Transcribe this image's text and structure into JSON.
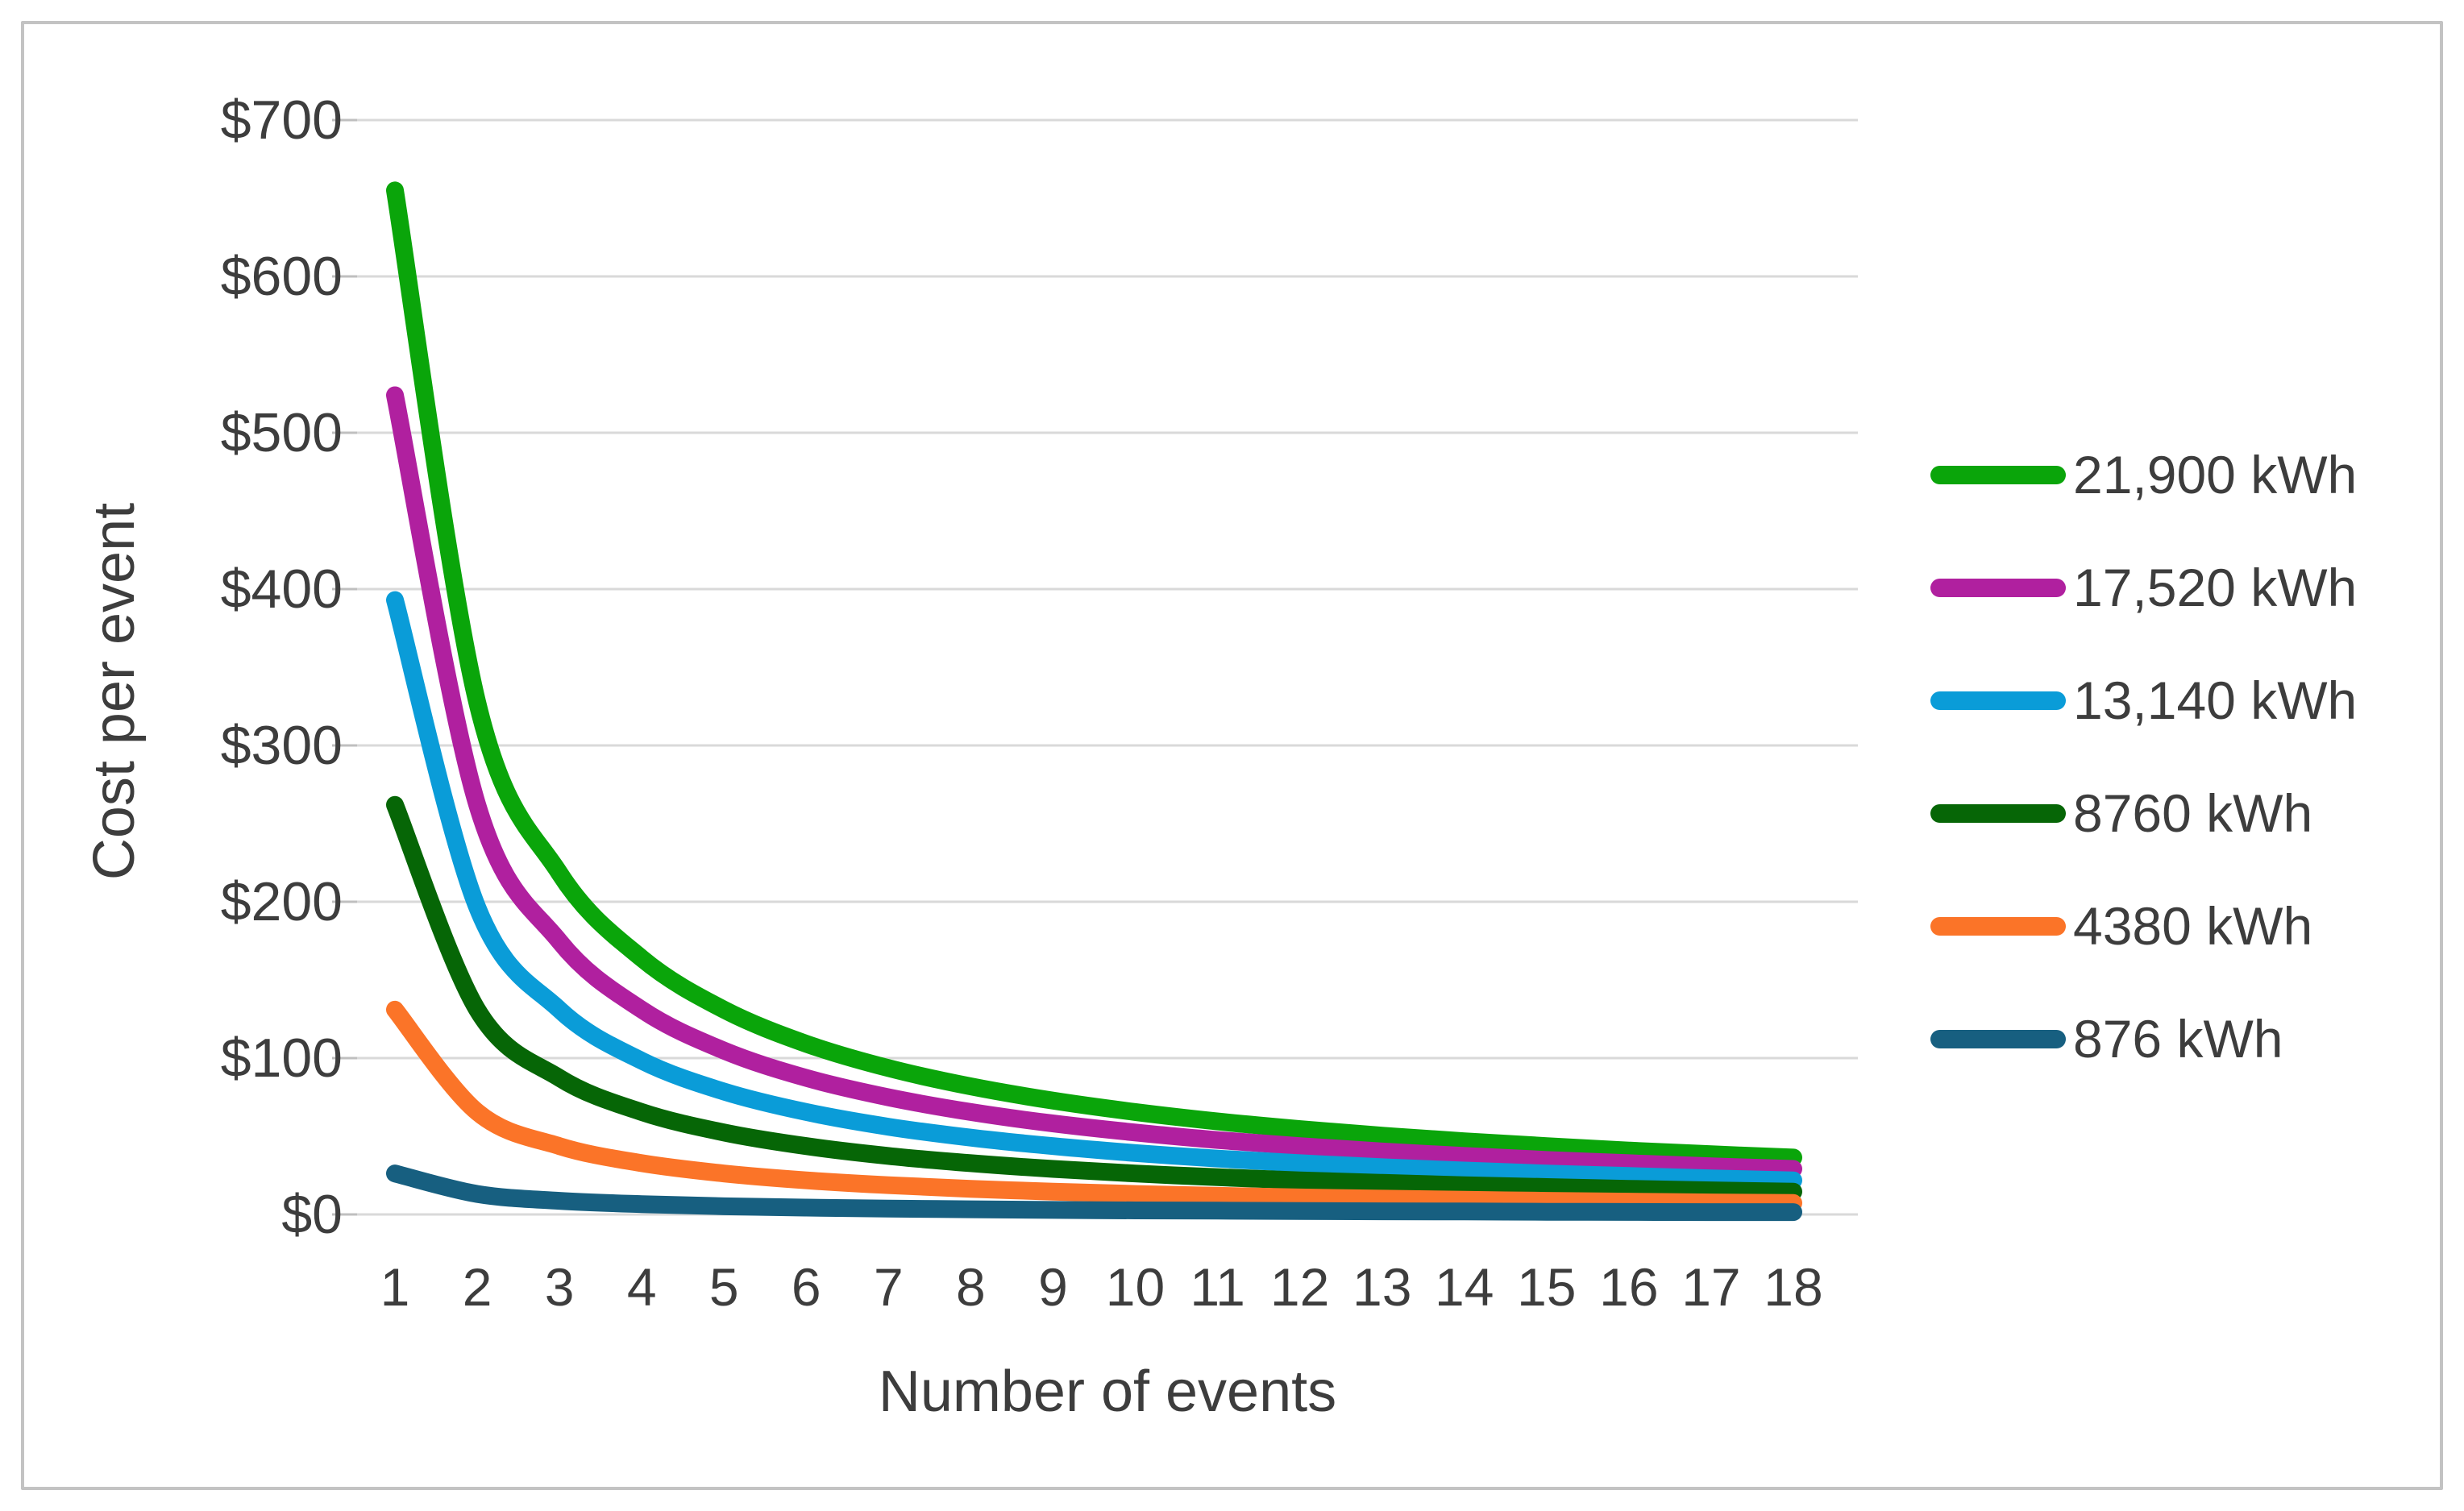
{
  "figure": {
    "background": "#FFFFFF",
    "border_color": "#C3C3C3",
    "text_color": "#3D3D3D"
  },
  "chart_data": {
    "type": "line",
    "title": "",
    "xlabel": "Number of events",
    "ylabel": "Cost per event",
    "x": [
      1,
      2,
      3,
      4,
      5,
      6,
      7,
      8,
      9,
      10,
      11,
      12,
      13,
      14,
      15,
      16,
      17,
      18
    ],
    "x_tick_labels": [
      "1",
      "2",
      "3",
      "4",
      "5",
      "6",
      "7",
      "8",
      "9",
      "10",
      "11",
      "12",
      "13",
      "14",
      "15",
      "16",
      "17",
      "18"
    ],
    "y_ticks": [
      0,
      100,
      200,
      300,
      400,
      500,
      600,
      700
    ],
    "y_tick_labels": [
      "$0",
      "$100",
      "$200",
      "$300",
      "$400",
      "$500",
      "$600",
      "$700"
    ],
    "ylim": [
      0,
      700
    ],
    "xlim": [
      1,
      18
    ],
    "grid": "horizontal",
    "gridline_color": "#D9D9D9",
    "legend_position": "right",
    "series": [
      {
        "name": "21,900 kWh",
        "color": "#0AA50A",
        "values": [
          655.0,
          327.5,
          218.3,
          163.8,
          131.0,
          109.2,
          93.6,
          81.9,
          72.8,
          65.5,
          59.5,
          54.6,
          50.4,
          46.8,
          43.7,
          40.9,
          38.5,
          36.4
        ]
      },
      {
        "name": "17,520 kWh",
        "color": "#B0209F",
        "values": [
          524.0,
          262.0,
          174.7,
          131.0,
          104.8,
          87.3,
          74.9,
          65.5,
          58.2,
          52.4,
          47.6,
          43.7,
          40.3,
          37.4,
          34.9,
          32.8,
          30.8,
          29.1
        ]
      },
      {
        "name": "13,140 kWh",
        "color": "#0A9CD8",
        "values": [
          393.0,
          196.5,
          131.0,
          98.3,
          78.6,
          65.5,
          56.1,
          49.1,
          43.7,
          39.3,
          35.7,
          32.8,
          30.2,
          28.1,
          26.2,
          24.6,
          23.1,
          21.8
        ]
      },
      {
        "name": "8760 kWh",
        "color": "#066606",
        "values": [
          262.0,
          131.0,
          87.3,
          65.5,
          52.4,
          43.7,
          37.4,
          32.8,
          29.1,
          26.2,
          23.8,
          21.8,
          20.2,
          18.7,
          17.5,
          16.4,
          15.4,
          14.6
        ]
      },
      {
        "name": "4380 kWh",
        "color": "#FB7428",
        "values": [
          131.0,
          65.5,
          43.7,
          32.8,
          26.2,
          21.8,
          18.7,
          16.4,
          14.6,
          13.1,
          11.9,
          10.9,
          10.1,
          9.4,
          8.7,
          8.2,
          7.7,
          7.3
        ]
      },
      {
        "name": "876 kWh",
        "color": "#175F80",
        "values": [
          26.2,
          13.1,
          8.7,
          6.6,
          5.2,
          4.4,
          3.7,
          3.3,
          2.9,
          2.6,
          2.4,
          2.2,
          2.0,
          1.9,
          1.7,
          1.6,
          1.5,
          1.5
        ]
      }
    ]
  }
}
